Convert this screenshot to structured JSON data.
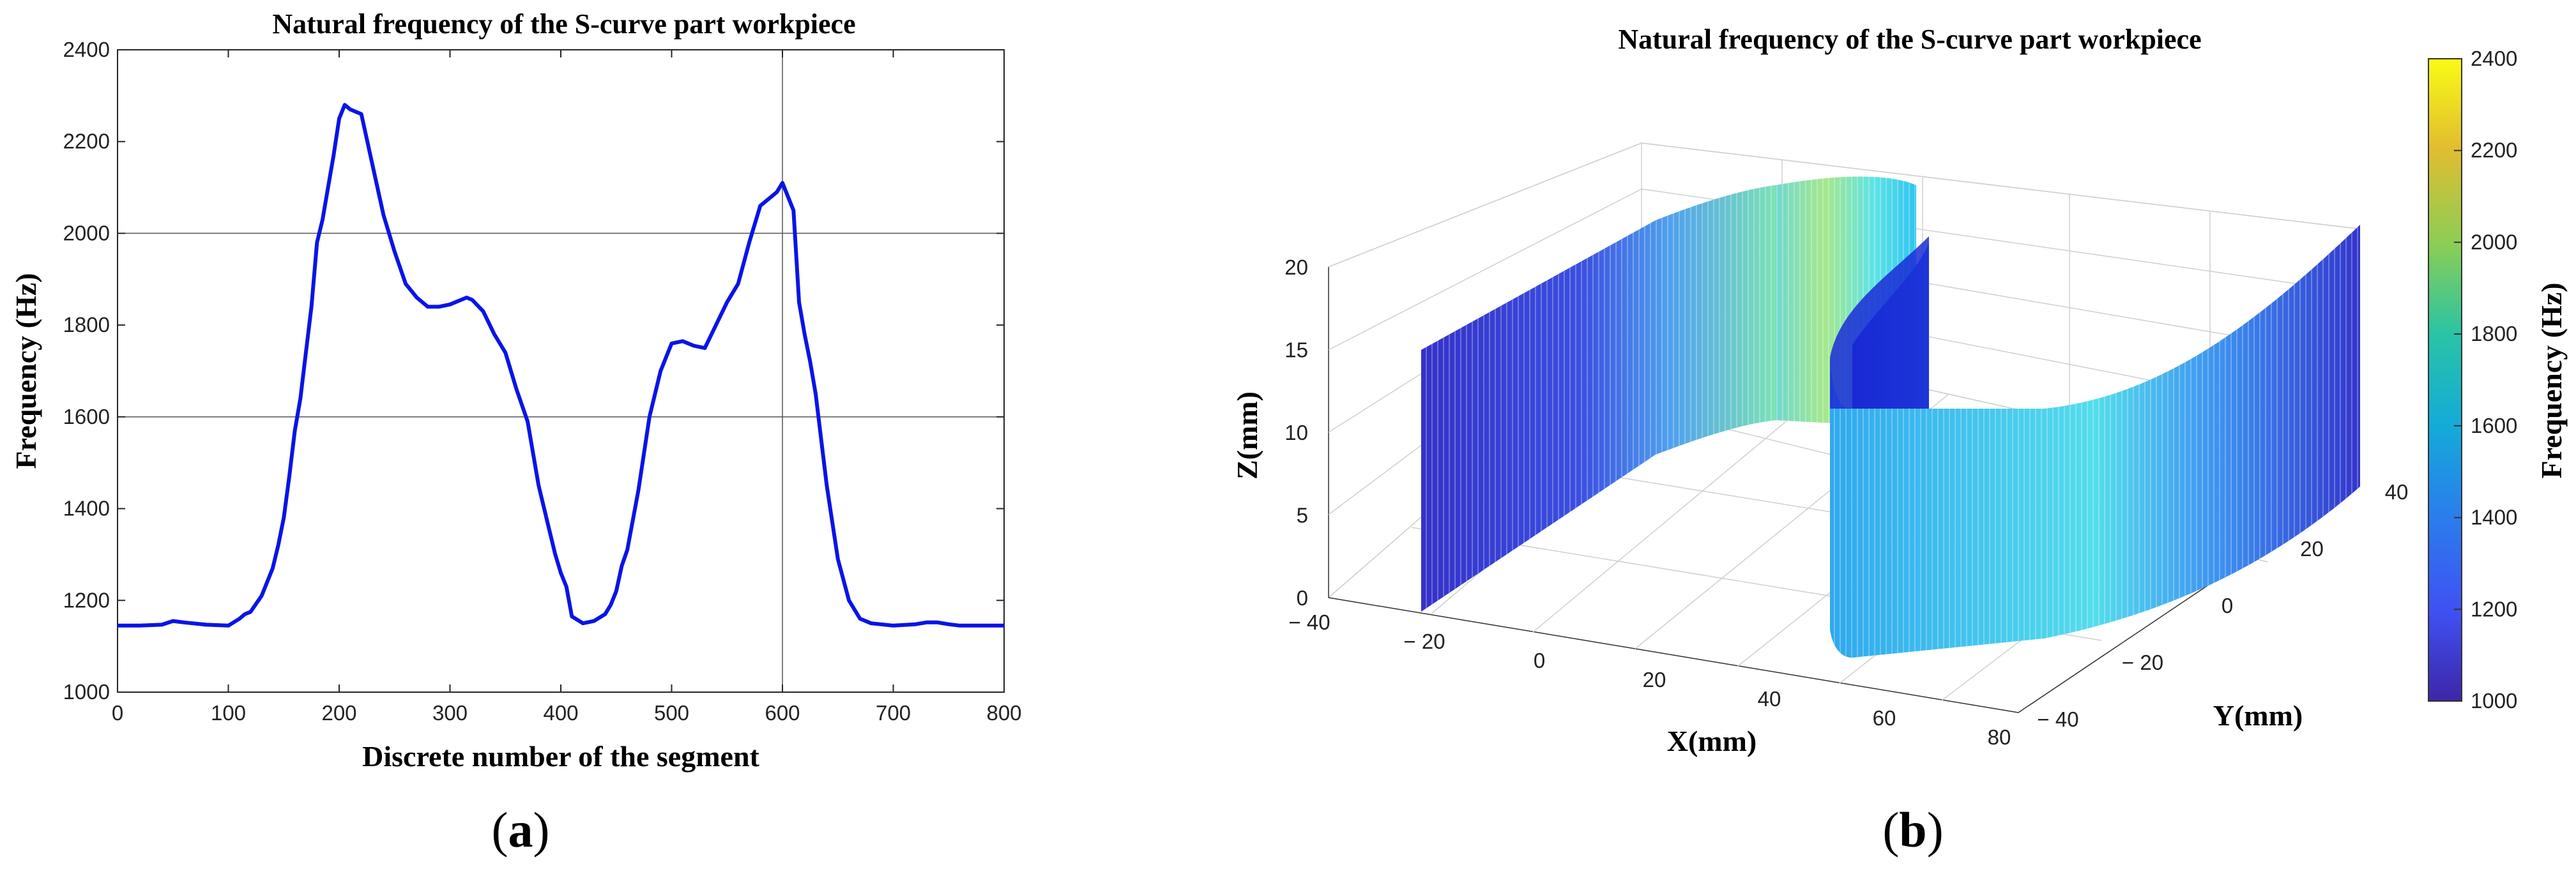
{
  "chart_data": [
    {
      "type": "line",
      "panel_label": "(a)",
      "panel_label_letter": "a",
      "title": "Natural frequency of the S-curve part workpiece",
      "xlabel": "Discrete number of the segment",
      "ylabel": "Frequency (Hz)",
      "xlim": [
        0,
        800
      ],
      "ylim": [
        1000,
        2400
      ],
      "xticks": [
        0,
        100,
        200,
        300,
        400,
        500,
        600,
        700,
        800
      ],
      "yticks": [
        1000,
        1200,
        1400,
        1600,
        1800,
        2000,
        2200,
        2400
      ],
      "grid": "partial",
      "reference_lines": {
        "horizontal": [
          1600,
          2000
        ],
        "vertical": [
          600
        ]
      },
      "series": [
        {
          "name": "Natural frequency",
          "color": "#0a14e6",
          "x": [
            0,
            20,
            40,
            50,
            60,
            80,
            100,
            110,
            115,
            120,
            130,
            140,
            145,
            150,
            155,
            160,
            165,
            170,
            175,
            180,
            185,
            190,
            195,
            200,
            205,
            210,
            215,
            220,
            230,
            240,
            250,
            260,
            270,
            280,
            290,
            300,
            305,
            310,
            315,
            320,
            330,
            340,
            350,
            360,
            370,
            380,
            390,
            395,
            400,
            405,
            410,
            420,
            430,
            440,
            445,
            450,
            455,
            460,
            470,
            480,
            490,
            500,
            510,
            520,
            530,
            540,
            550,
            560,
            570,
            580,
            590,
            595,
            600,
            610,
            615,
            620,
            625,
            630,
            640,
            650,
            660,
            670,
            680,
            700,
            720,
            730,
            740,
            750,
            760,
            780,
            800
          ],
          "y": [
            1145,
            1145,
            1147,
            1155,
            1152,
            1147,
            1145,
            1160,
            1170,
            1175,
            1210,
            1270,
            1320,
            1380,
            1470,
            1570,
            1640,
            1740,
            1840,
            1980,
            2030,
            2100,
            2170,
            2250,
            2280,
            2270,
            2265,
            2260,
            2150,
            2040,
            1960,
            1890,
            1860,
            1840,
            1840,
            1845,
            1850,
            1855,
            1860,
            1855,
            1830,
            1780,
            1740,
            1660,
            1590,
            1450,
            1350,
            1300,
            1260,
            1230,
            1165,
            1150,
            1155,
            1170,
            1190,
            1220,
            1275,
            1310,
            1440,
            1600,
            1700,
            1760,
            1765,
            1755,
            1750,
            1800,
            1850,
            1890,
            1980,
            2060,
            2080,
            2090,
            2110,
            2050,
            1850,
            1780,
            1720,
            1650,
            1450,
            1290,
            1200,
            1160,
            1150,
            1145,
            1148,
            1152,
            1152,
            1148,
            1145,
            1145,
            1145
          ]
        }
      ]
    },
    {
      "type": "surface3d",
      "panel_label": "(b)",
      "panel_label_letter": "b",
      "title": "Natural frequency of the S-curve part workpiece",
      "xlabel": "X(mm)",
      "ylabel": "Y(mm)",
      "zlabel": "Z(mm)",
      "colorbar_label": "Frequency (Hz)",
      "xticks": [
        -40,
        -20,
        0,
        20,
        40,
        60,
        80
      ],
      "xtick_labels": [
        "− 40",
        "− 20",
        "0",
        "20",
        "40",
        "60",
        "80"
      ],
      "yticks": [
        -40,
        -20,
        0,
        20,
        40
      ],
      "ytick_labels": [
        "− 40",
        "− 20",
        "0",
        "20",
        "40"
      ],
      "zticks": [
        0,
        5,
        10,
        15,
        20
      ],
      "zlim": [
        0,
        20
      ],
      "clim": [
        1000,
        2400
      ],
      "colorbar_ticks": [
        1000,
        1200,
        1400,
        1600,
        1800,
        2000,
        2200,
        2400
      ],
      "colormap": "parula",
      "surface_height": 20,
      "series": [
        {
          "name": "S-curve wall",
          "description_stops": [
            1000,
            1150,
            1800,
            1500,
            1000
          ]
        }
      ]
    }
  ]
}
